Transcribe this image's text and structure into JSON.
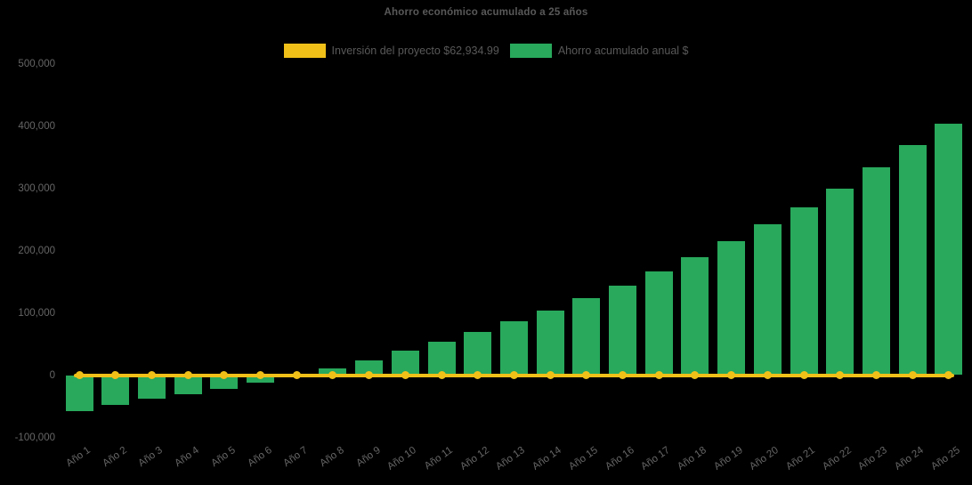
{
  "title": "Ahorro económico acumulado a 25 años",
  "colors": {
    "background": "#000000",
    "bar_green": "#28A95C",
    "line_yellow": "#F0C019",
    "text_gray": "#595959",
    "tick_gray": "#666666"
  },
  "legend": [
    {
      "label": "Inversión del proyecto $62,934.99",
      "color_key": "line_yellow",
      "series": "investment-line"
    },
    {
      "label": "Ahorro acumulado anual $",
      "color_key": "bar_green",
      "series": "savings-bars"
    }
  ],
  "chart_data": {
    "type": "bar",
    "title": "Ahorro económico acumulado a 25 años",
    "categories": [
      "Año 1",
      "Año 2",
      "Año 3",
      "Año 4",
      "Año 5",
      "Año 6",
      "Año 7",
      "Año 8",
      "Año 9",
      "Año 10",
      "Año 11",
      "Año 12",
      "Año 13",
      "Año 14",
      "Año 15",
      "Año 16",
      "Año 17",
      "Año 18",
      "Año 19",
      "Año 20",
      "Año 21",
      "Año 22",
      "Año 23",
      "Año 24",
      "Año 25"
    ],
    "series": [
      {
        "name": "Inversión del proyecto $62,934.99",
        "type": "line",
        "color": "#F0C019",
        "values": [
          0,
          0,
          0,
          0,
          0,
          0,
          0,
          0,
          0,
          0,
          0,
          0,
          0,
          0,
          0,
          0,
          0,
          0,
          0,
          0,
          0,
          0,
          0,
          0,
          0
        ]
      },
      {
        "name": "Ahorro acumulado anual $",
        "type": "bar",
        "color": "#28A95C",
        "values": [
          -58000,
          -48500,
          -38500,
          -31000,
          -22000,
          -12000,
          -500,
          10500,
          24000,
          39500,
          54000,
          70000,
          86000,
          103000,
          124000,
          144000,
          166000,
          190000,
          215000,
          242000,
          270000,
          300000,
          333000,
          369000,
          404000
        ]
      }
    ],
    "xlabel": "",
    "ylabel": "",
    "ylim": [
      -100000,
      500000
    ],
    "ytick_step": 100000,
    "ytick_labels": [
      "500,000",
      "400,000",
      "300,000",
      "200,000",
      "100,000",
      "0",
      "-100,000"
    ],
    "grid": false,
    "legend_position": "top",
    "background": "black"
  }
}
